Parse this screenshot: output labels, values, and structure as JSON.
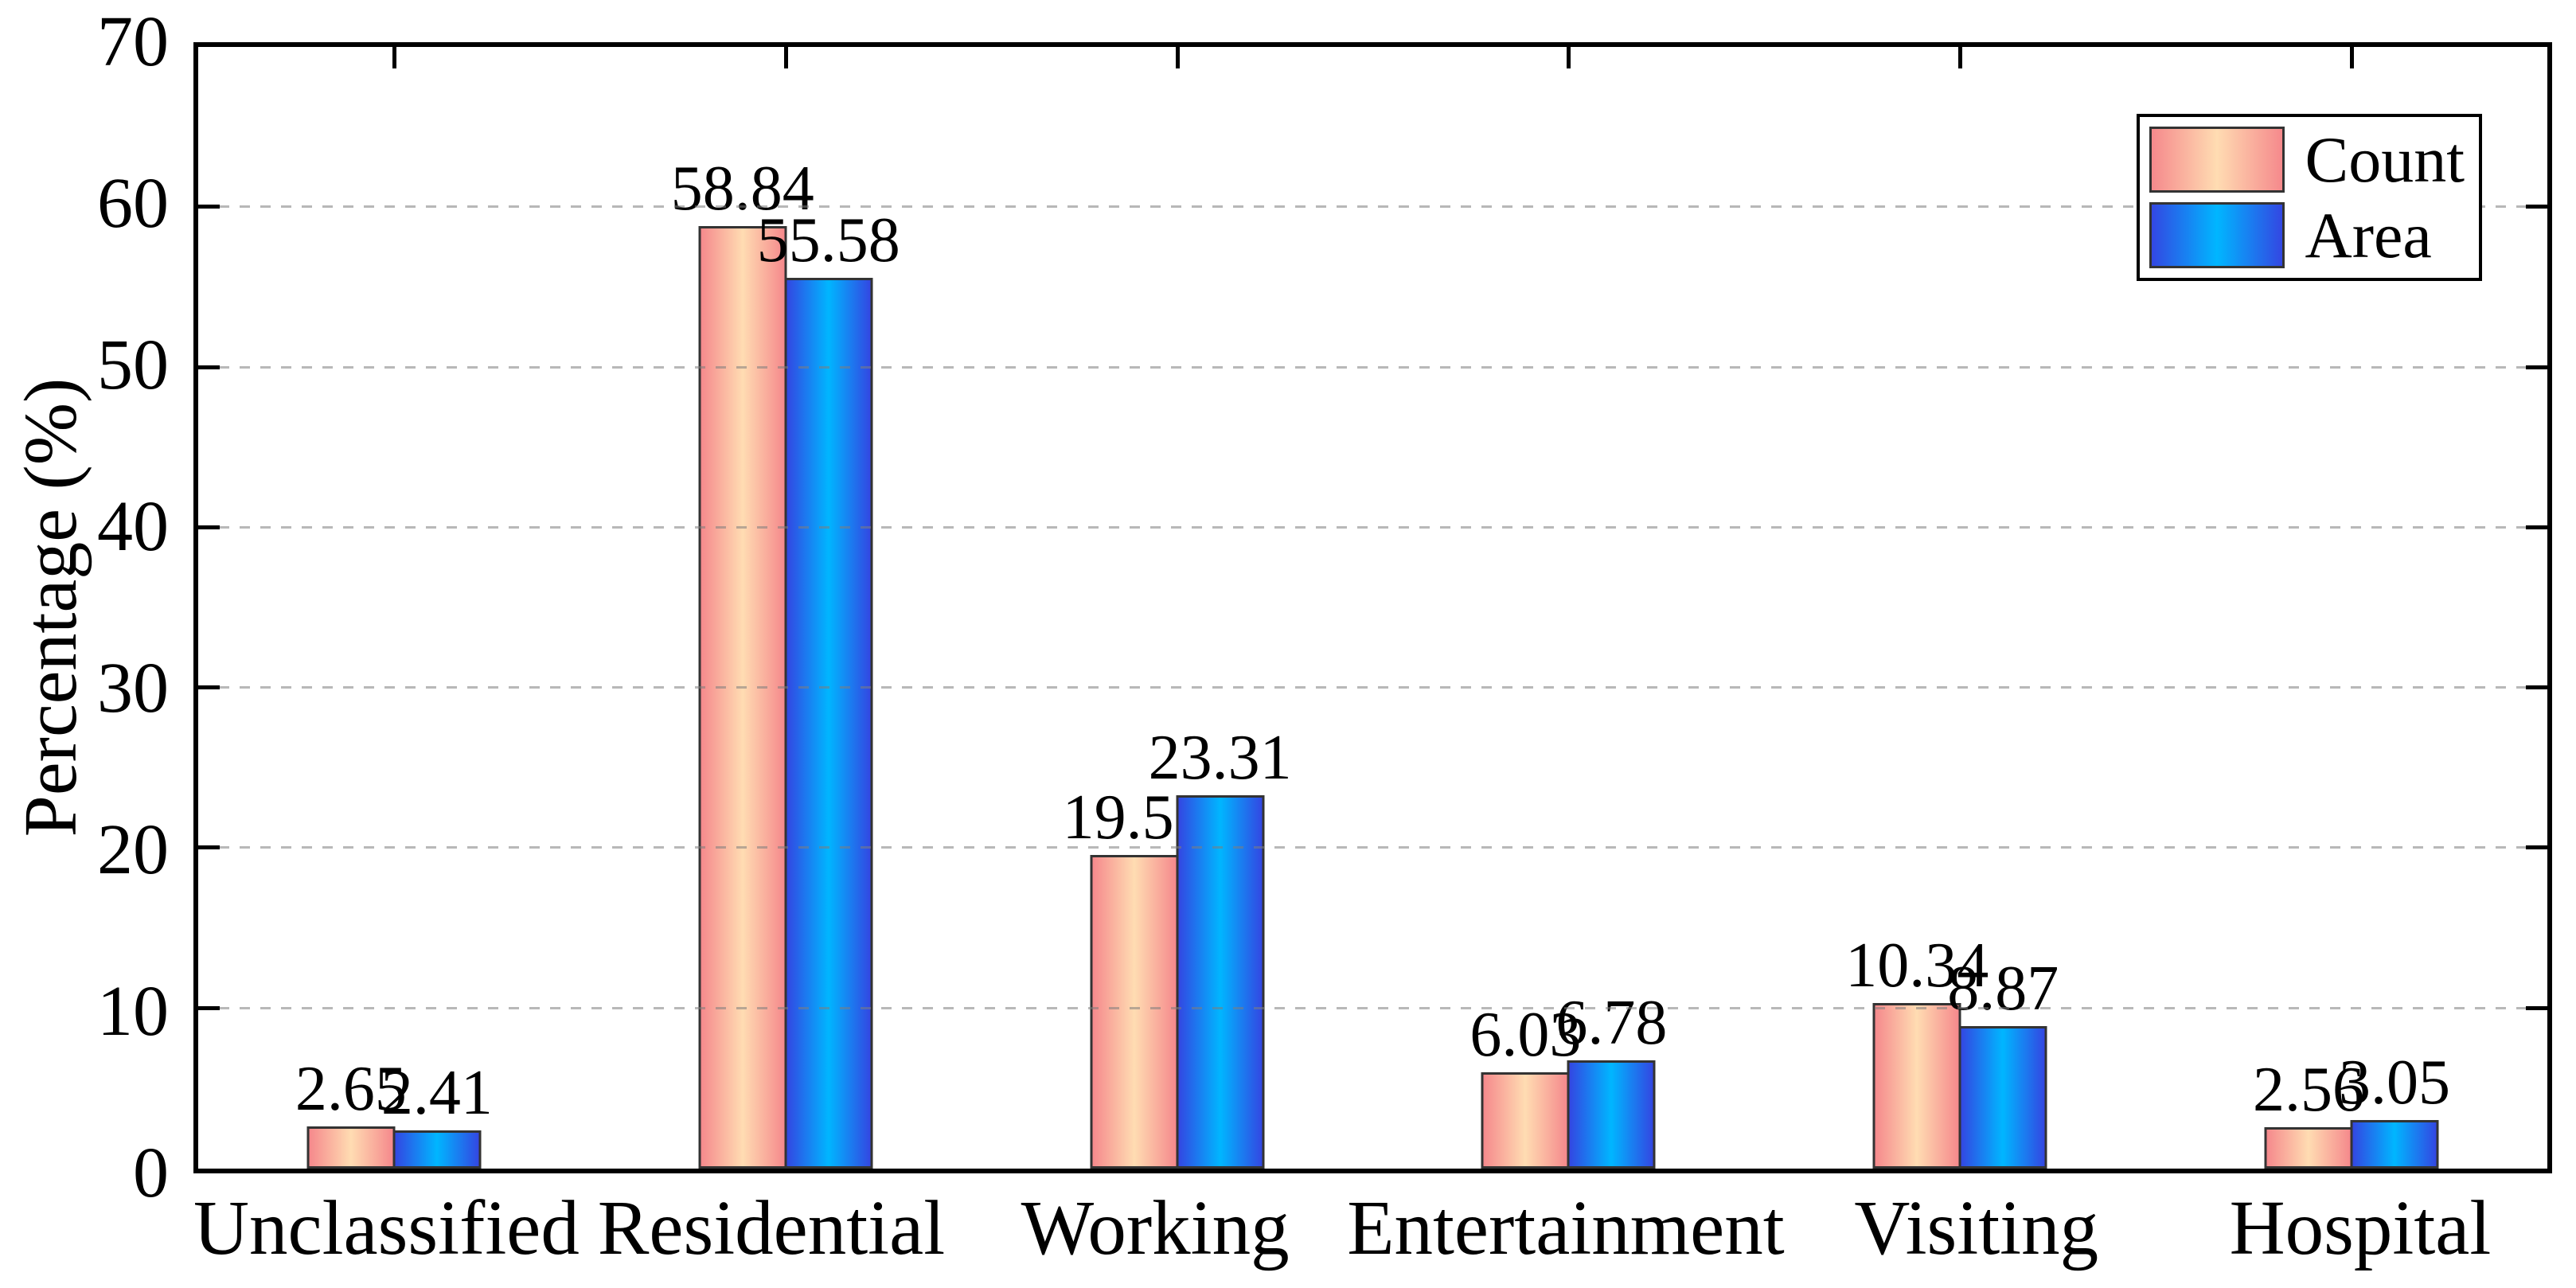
{
  "chart_data": {
    "type": "bar",
    "title": "",
    "xlabel": "",
    "ylabel": "Percentage (%)",
    "ylim": [
      0,
      70
    ],
    "yticks": [
      "0",
      "10",
      "20",
      "30",
      "40",
      "50",
      "60",
      "70"
    ],
    "gridline_values": [
      10,
      20,
      30,
      40,
      50,
      60
    ],
    "grid_style": "horizontal dashed gray lines",
    "legend_position": "upper right",
    "categories": [
      "Unclassified",
      "Residential",
      "Working",
      "Entertainment",
      "Visiting",
      "Hospital"
    ],
    "series": [
      {
        "name": "Count",
        "values": [
          2.65,
          58.84,
          19.58,
          6.03,
          10.34,
          2.56
        ],
        "value_labels": [
          "2.65",
          "58.84",
          "19.58",
          "6.03",
          "10.34",
          "2.56"
        ],
        "edge_color": "#F5898C",
        "center_color": "#FFDCB2"
      },
      {
        "name": "Area",
        "values": [
          2.41,
          55.58,
          23.31,
          6.78,
          8.87,
          3.05
        ],
        "value_labels": [
          "2.41",
          "55.58",
          "23.31",
          "6.78",
          "8.87",
          "3.05"
        ],
        "edge_color": "#3347E2",
        "center_color": "#00B6FF"
      }
    ],
    "bar_border_color": "#333333",
    "axis_color": "#000000",
    "gridline_color": "rgba(125,125,125,0.55)",
    "text_color": "#000000"
  }
}
